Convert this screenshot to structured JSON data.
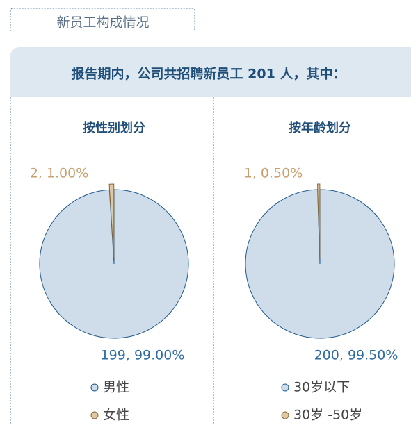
{
  "header": {
    "title": "新员工构成情况"
  },
  "banner": {
    "text": "报告期内，公司共招聘新员工 201 人，其中："
  },
  "chart_data": [
    {
      "type": "pie",
      "title": "按性别划分",
      "categories": [
        "男性",
        "女性"
      ],
      "values": [
        199,
        2
      ],
      "value_labels": [
        "199, 99.00%",
        "2, 1.00%"
      ],
      "colors": [
        "#cfdcea",
        "#dfc9a4"
      ]
    },
    {
      "type": "pie",
      "title": "按年龄划分",
      "categories": [
        "30岁以下",
        "30岁 -50岁"
      ],
      "values": [
        200,
        1
      ],
      "value_labels": [
        "200, 99.50%",
        "1, 0.50%"
      ],
      "colors": [
        "#cfdcea",
        "#dfc9a4"
      ]
    }
  ]
}
